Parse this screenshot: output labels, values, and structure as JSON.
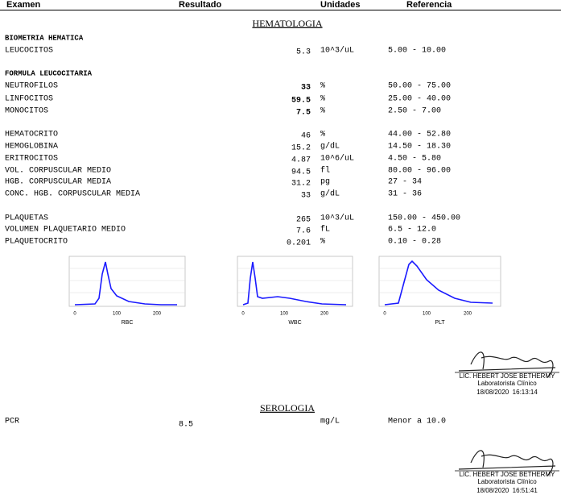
{
  "header": {
    "columns": [
      "Examen",
      "Resultado",
      "Unidades",
      "Referencia"
    ]
  },
  "sections": [
    {
      "title": "HEMATOLOGIA",
      "groups": [
        {
          "title": "BIOMETRIA HEMATICA",
          "rows": [
            [
              "LEUCOCITOS",
              "5.3",
              "10^3/uL",
              "5.00 - 10.00"
            ]
          ]
        },
        {
          "title": "FORMULA LEUCOCITARIA",
          "rows": [
            [
              "NEUTROFILOS",
              "33",
              "%",
              "50.00 - 75.00"
            ],
            [
              "LINFOCITOS",
              "59.5",
              "%",
              "25.00 - 40.00"
            ],
            [
              "MONOCITOS",
              "7.5",
              "%",
              "2.50 - 7.00"
            ]
          ]
        },
        {
          "rows": [
            [
              "HEMATOCRITO",
              "46",
              "%",
              "44.00 - 52.80"
            ],
            [
              "HEMOGLOBINA",
              "15.2",
              "g/dL",
              "14.50 - 18.30"
            ],
            [
              "ERITROCITOS",
              "4.87",
              "10^6/uL",
              "4.50 - 5.80"
            ],
            [
              "VOL. CORPUSCULAR MEDIO",
              "94.5",
              "fl",
              "80.00 - 96.00"
            ],
            [
              "HGB. CORPUSCULAR MEDIA",
              "31.2",
              "pg",
              "27 - 34"
            ],
            [
              "CONC. HGB. CORPUSCULAR MEDIA",
              "33",
              "g/dL",
              "31 - 36"
            ]
          ]
        },
        {
          "rows": [
            [
              "PLAQUETAS",
              "265",
              "10^3/uL",
              "150.00 - 450.00"
            ],
            [
              "VOLUMEN PLAQUETARIO MEDIO",
              "7.6",
              "fL",
              "6.5 - 12.0"
            ],
            [
              "PLAQUETOCRITO",
              "0.201",
              "%",
              "0.10 - 0.28"
            ]
          ]
        }
      ],
      "histograms": [
        {
          "label": "RBC",
          "ticks": [
            "0",
            "100",
            "200"
          ]
        },
        {
          "label": "WBC",
          "ticks": [
            "0",
            "100",
            "200"
          ]
        },
        {
          "label": "PLT",
          "ticks": [
            "0",
            "100",
            "200"
          ]
        }
      ],
      "signature": {
        "name": "LIC. HEBERT JOSE BETHERMY",
        "role": "Laboratorista Clínico",
        "timestamp": "18/08/2020  16:13:14"
      }
    },
    {
      "title": "SEROLOGIA",
      "groups": [
        {
          "rows": [
            [
              "PCR",
              "8.5",
              "mg/L",
              "Menor a 10.0"
            ]
          ]
        }
      ],
      "signature": {
        "name": "LIC. HEBERT JOSE BETHERMY",
        "role": "Laboratorista Clínico",
        "timestamp": "18/08/2020  16:51:41"
      }
    }
  ]
}
